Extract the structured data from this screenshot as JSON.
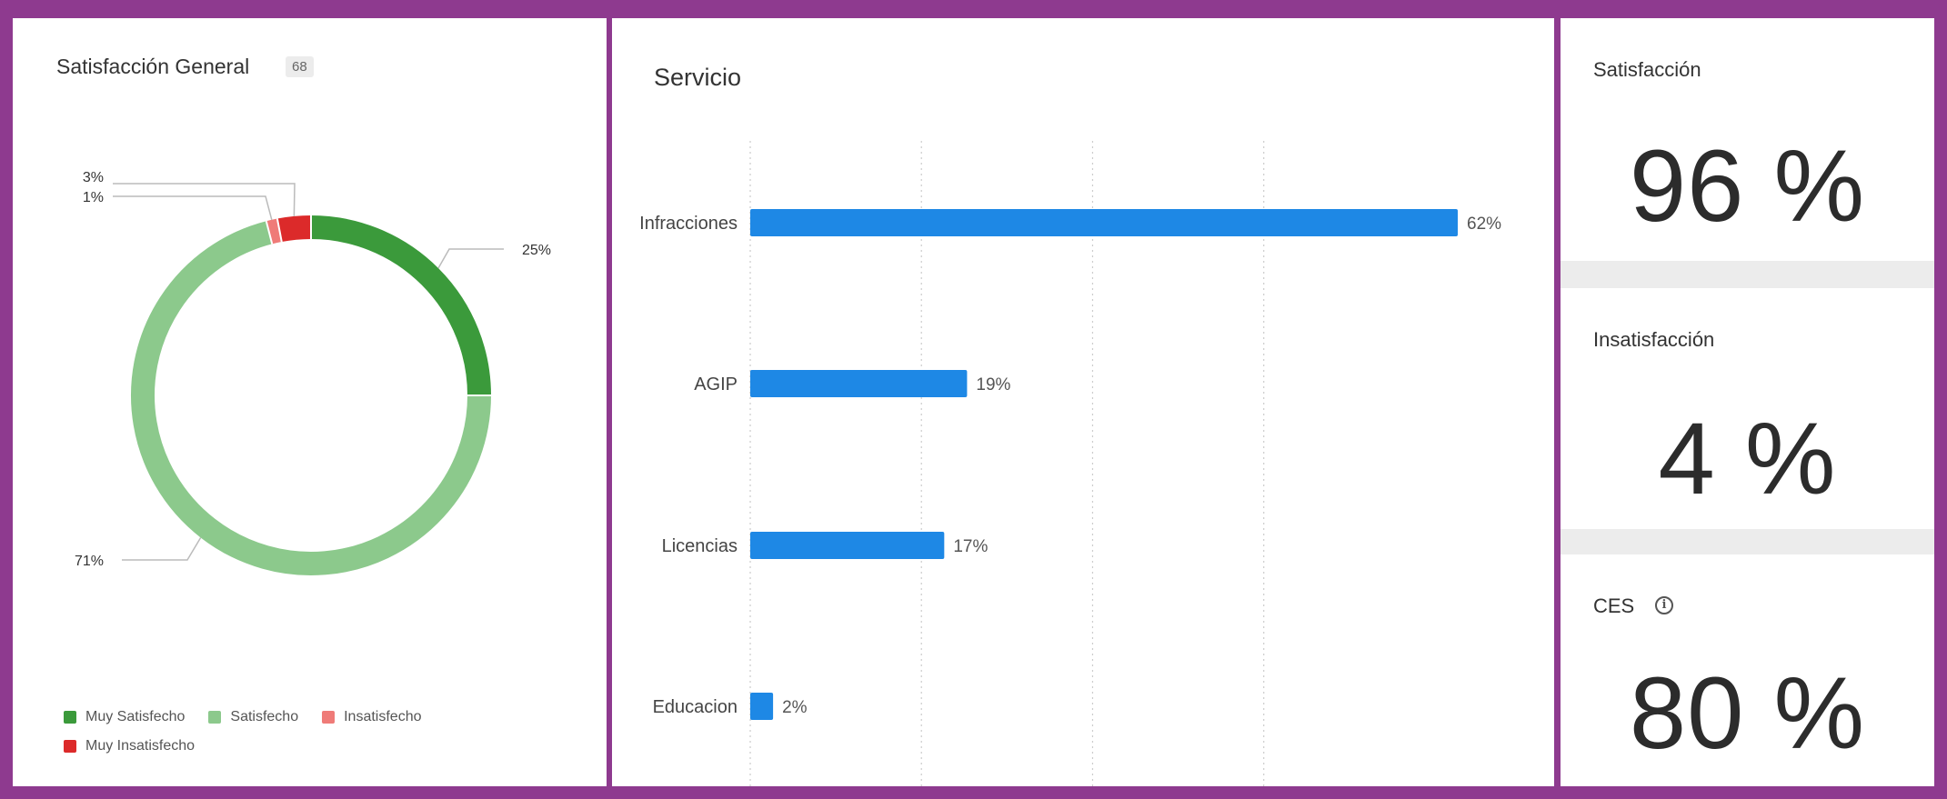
{
  "donut_panel": {
    "title": "Satisfacción General",
    "count": "68",
    "legend": [
      {
        "label": "Muy Satisfecho",
        "color": "#3b9a3b"
      },
      {
        "label": "Satisfecho",
        "color": "#8cc98c"
      },
      {
        "label": "Insatisfecho",
        "color": "#ef7b78"
      },
      {
        "label": "Muy Insatisfecho",
        "color": "#dc2a2a"
      }
    ]
  },
  "bar_panel": {
    "title": "Servicio"
  },
  "metric_cards": [
    {
      "title": "Satisfacción",
      "value": "96 %"
    },
    {
      "title": "Insatisfacción",
      "value": "4 %"
    },
    {
      "title": "CES",
      "value": "80 %",
      "info_icon": "info-icon"
    }
  ],
  "chart_data": [
    {
      "type": "pie",
      "title": "Satisfacción General",
      "categories": [
        "Muy Satisfecho",
        "Satisfecho",
        "Insatisfecho",
        "Muy Insatisfecho"
      ],
      "values": [
        25,
        71,
        1,
        3
      ],
      "labels": [
        "25%",
        "71%",
        "1%",
        "3%"
      ],
      "colors": [
        "#3b9a3b",
        "#8cc98c",
        "#ef7b78",
        "#dc2a2a"
      ],
      "donut": true,
      "legend": "bottom"
    },
    {
      "type": "bar",
      "orientation": "horizontal",
      "title": "Servicio",
      "categories": [
        "Infracciones",
        "AGIP",
        "Licencias",
        "Educacion"
      ],
      "values": [
        62,
        19,
        17,
        2
      ],
      "labels": [
        "62%",
        "19%",
        "17%",
        "2%"
      ],
      "color": "#1e88e5",
      "xlim": [
        0,
        60
      ],
      "grid": true
    }
  ]
}
